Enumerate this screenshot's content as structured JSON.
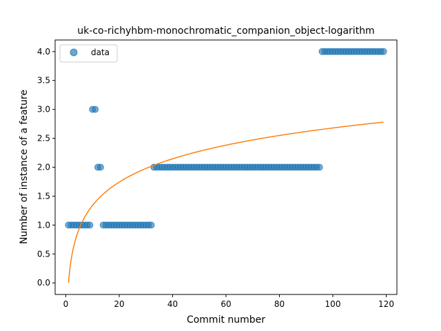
{
  "chart_data": {
    "type": "scatter",
    "title": "uk-co-richyhbm-monochromatic_companion_object-logarithm",
    "xlabel": "Commit number",
    "ylabel": "Number of instance of a feature",
    "xlim": [
      -4,
      124
    ],
    "ylim": [
      -0.2,
      4.2
    ],
    "x_ticks": [
      0,
      20,
      40,
      60,
      80,
      100,
      120
    ],
    "y_ticks": [
      0.0,
      0.5,
      1.0,
      1.5,
      2.0,
      2.5,
      3.0,
      3.5,
      4.0
    ],
    "x_tick_labels": [
      "0",
      "20",
      "40",
      "60",
      "80",
      "100",
      "120"
    ],
    "y_tick_labels": [
      "0.0",
      "0.5",
      "1.0",
      "1.5",
      "2.0",
      "2.5",
      "3.0",
      "3.5",
      "4.0"
    ],
    "grid": false,
    "legend": {
      "position": "upper-left",
      "entries": [
        "data"
      ]
    },
    "colors": {
      "data": "#1f77b4",
      "fit": "#ff7f0e"
    },
    "series": [
      {
        "name": "data",
        "kind": "scatter",
        "segments": [
          {
            "x_start": 1,
            "x_end": 9,
            "y": 1
          },
          {
            "x_start": 10,
            "x_end": 11,
            "y": 3
          },
          {
            "x_start": 12,
            "x_end": 13,
            "y": 2
          },
          {
            "x_start": 14,
            "x_end": 32,
            "y": 1
          },
          {
            "x_start": 33,
            "x_end": 95,
            "y": 2
          },
          {
            "x_start": 96,
            "x_end": 119,
            "y": 4
          }
        ]
      },
      {
        "kind": "line",
        "function": "logarithm",
        "x_start": 1,
        "x_end": 119,
        "y_at_x_start": 0.0,
        "y_at_x_end": 2.78
      }
    ]
  }
}
